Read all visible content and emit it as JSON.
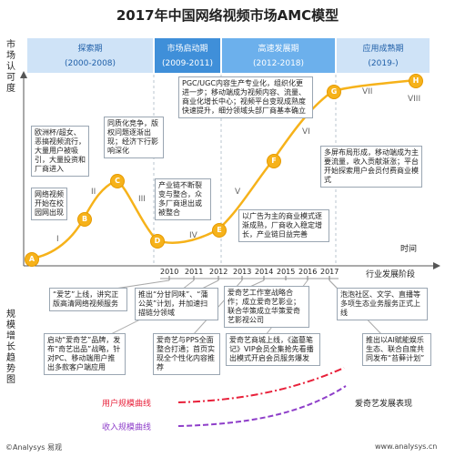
{
  "title": "2017年中国网络视频市场AMC模型",
  "y_axis_top": "市场认可度",
  "y_axis_bottom": "规模增长趋势图",
  "x_axis_time": "时间",
  "x_axis_stage": "行业发展阶段",
  "phases": [
    {
      "name": "探索期",
      "range": "(2000-2008)",
      "color": "#cfe3f7"
    },
    {
      "name": "市场启动期",
      "range": "(2009-2011)",
      "color": "#3f8fd9"
    },
    {
      "name": "高速发展期",
      "range": "(2012-2018)",
      "color": "#6cb0ec"
    },
    {
      "name": "应用成熟期",
      "range": "(2019-)",
      "color": "#cfe3f7"
    }
  ],
  "nodes": [
    {
      "label": "A"
    },
    {
      "label": "B"
    },
    {
      "label": "C"
    },
    {
      "label": "D"
    },
    {
      "label": "E"
    },
    {
      "label": "F"
    },
    {
      "label": "G"
    },
    {
      "label": "H"
    }
  ],
  "roman": [
    "I",
    "II",
    "III",
    "IV",
    "V",
    "VI",
    "VII",
    "VIII"
  ],
  "annotations": [
    "网络视频开始在校园网出现",
    "欧洲杯/超女、恶搞视频流行，大量用户被吸引，大量投资和厂商进入",
    "同质化竞争，版权问题逐渐出现；经济下行影响深化",
    "产业链不断裂变与整合，众多厂商退出或被整合",
    "以广告为主的商业模式逐渐成熟，厂商收入稳定增长，产业链日益完善",
    "PGC/UGC内容生产专业化，组织化更进一步；移动端成为视频内容、流量、商业化增长中心；视频平台变现成熟度快速提升，细分领域头部厂商基本确立",
    "多屏布局形成，移动端成为主要流量，收入贡献渐涨；平台开始探索用户会员付费商业模式"
  ],
  "years": [
    "2010",
    "2011",
    "2012",
    "2013",
    "2014",
    "2015",
    "2016",
    "2017"
  ],
  "events_top": [
    "“爱艺”上线，讲究正版高清网络视频服务",
    "推出“分甘同味”、“蒲公英”计划，并加速扫描链分领域",
    "爱奇艺工作室战略合作；成立爱奇艺影业；联合华策成立华策爱奇艺影视公司",
    "泡泡社区、文学、直播等多项生态业务服务正式上线"
  ],
  "events_bottom": [
    "启动“爱奇艺”品牌，发布“奇艺出品”战略，针对PC、移动端用户推出多款客户端应用",
    "爱奇艺与PPS全面整合打通；首页实现全个性化内容推荐",
    "爱奇艺商城上线，《盗墓笔记》VIP会员全集抢先看播出模式开启会员服务爆发",
    "推出以AI赋能娱乐生态、联合自度共同发布“苔藓计划”"
  ],
  "legend": {
    "user": "用户规模曲线",
    "revenue": "收入规模曲线",
    "brand": "爱奇艺发展表现"
  },
  "colors": {
    "curve": "#f6b21a",
    "user": "#e8203a",
    "revenue": "#8e3ec9",
    "phase_text": "#1f5fa8"
  },
  "footer": {
    "copyright": "©Analysys 易观",
    "url": "www.analysys.cn"
  }
}
